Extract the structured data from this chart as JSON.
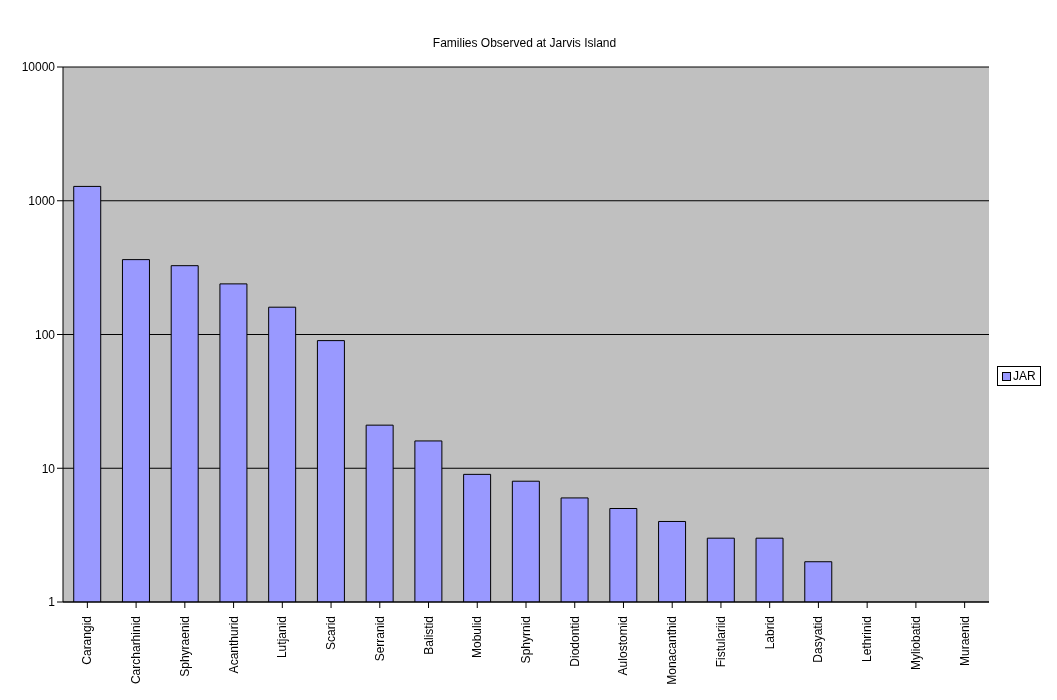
{
  "chart_data": {
    "type": "bar",
    "title": "Families Observed at Jarvis Island",
    "categories": [
      "Carangid",
      "Carcharhinid",
      "Sphyraenid",
      "Acanthurid",
      "Lutjanid",
      "Scarid",
      "Serranid",
      "Balistid",
      "Mobulid",
      "Sphyrnid",
      "Diodontid",
      "Aulostomid",
      "Monacanthid",
      "Fistulariid",
      "Labrid",
      "Dasyatid",
      "Lethrinid",
      "Myliobatid",
      "Muraenid"
    ],
    "series": [
      {
        "name": "JAR",
        "color": "#9999ff",
        "values": [
          1280,
          363,
          327,
          239,
          160,
          90,
          21,
          16,
          9,
          8,
          6,
          5,
          4,
          3,
          3,
          2,
          1,
          1,
          1
        ]
      }
    ],
    "log": "y",
    "ylim": [
      1,
      10000
    ],
    "yticks": [
      1,
      10,
      100,
      1000,
      10000
    ],
    "grid": "y",
    "legend": "right"
  }
}
